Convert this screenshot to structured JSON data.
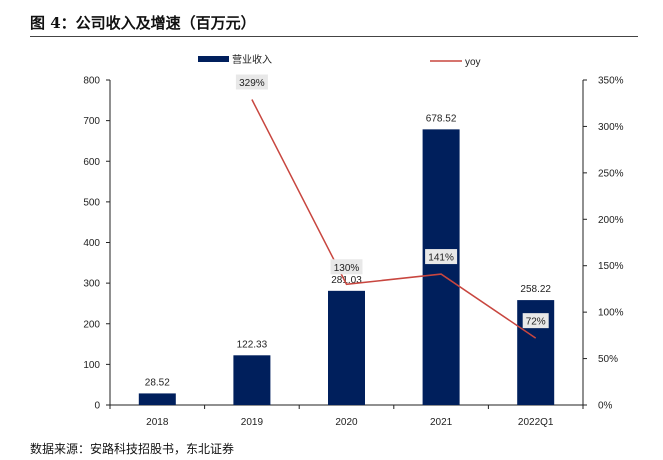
{
  "title": "图 4：公司收入及增速（百万元）",
  "source": "数据来源：安路科技招股书，东北证券",
  "chart_data": {
    "type": "bar",
    "categories": [
      "2018",
      "2019",
      "2020",
      "2021",
      "2022Q1"
    ],
    "series": [
      {
        "name": "营业收入",
        "type": "bar",
        "axis": "left",
        "values": [
          28.52,
          122.33,
          281.03,
          678.52,
          258.22
        ],
        "labels": [
          "28.52",
          "122.33",
          "281.03",
          "678.52",
          "258.22"
        ]
      },
      {
        "name": "yoy",
        "type": "line",
        "axis": "right",
        "values": [
          null,
          329,
          130,
          141,
          72
        ],
        "labels": [
          "",
          "329%",
          "130%",
          "141%",
          "72%"
        ]
      }
    ],
    "ylim": [
      0,
      800
    ],
    "yticks": [
      "0",
      "100",
      "200",
      "300",
      "400",
      "500",
      "600",
      "700",
      "800"
    ],
    "y2lim": [
      0,
      350
    ],
    "y2ticks": [
      "0%",
      "50%",
      "100%",
      "150%",
      "200%",
      "250%",
      "300%",
      "350%"
    ],
    "legend": "top",
    "grid": false,
    "colors": {
      "bar": "#001f5c",
      "line": "#c8463f",
      "label_bg": "#e8e8e8"
    }
  }
}
